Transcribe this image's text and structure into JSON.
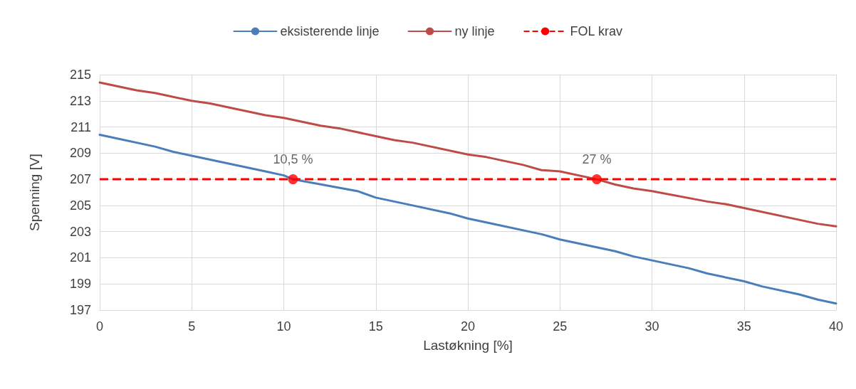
{
  "chart_data": {
    "type": "line",
    "xlabel": "Lastøkning [%]",
    "ylabel": "Spenning [V]",
    "xlim": [
      0,
      40
    ],
    "xticks": [
      0,
      5,
      10,
      15,
      20,
      25,
      30,
      35,
      40
    ],
    "ylim": [
      197,
      215
    ],
    "yticks": [
      197,
      199,
      201,
      203,
      205,
      207,
      209,
      211,
      213,
      215
    ],
    "grid": true,
    "legend": "top",
    "marker": "none",
    "line_style": "solid",
    "series": [
      {
        "name": "eksisterende linje",
        "color": "#4a7ebb",
        "x": [
          0,
          3,
          4,
          5,
          6,
          9,
          10,
          10.5,
          14,
          15,
          17,
          19,
          20,
          21,
          24,
          25,
          27,
          28,
          29,
          30,
          32,
          33,
          35,
          36,
          38,
          39,
          40
        ],
        "values": [
          210.4,
          209.5,
          209.1,
          208.8,
          208.5,
          207.6,
          207.3,
          207.0,
          206.1,
          205.6,
          205.0,
          204.4,
          204.0,
          203.7,
          202.8,
          202.4,
          201.8,
          201.5,
          201.1,
          200.8,
          200.2,
          199.8,
          199.2,
          198.8,
          198.2,
          197.8,
          197.5
        ]
      },
      {
        "name": "ny linje",
        "color": "#be4b48",
        "x": [
          0,
          2,
          3,
          5,
          6,
          9,
          10,
          12,
          13,
          15,
          16,
          17,
          20,
          21,
          23,
          24,
          25,
          27,
          28,
          29,
          30,
          33,
          34,
          35,
          38,
          39,
          40
        ],
        "values": [
          214.4,
          213.8,
          213.6,
          213.0,
          212.8,
          211.9,
          211.7,
          211.1,
          210.9,
          210.3,
          210.0,
          209.8,
          208.9,
          208.7,
          208.1,
          207.7,
          207.6,
          207.0,
          206.6,
          206.3,
          206.1,
          205.3,
          205.1,
          204.8,
          203.9,
          203.6,
          203.4
        ]
      }
    ],
    "ref_lines": [
      {
        "axis": "y",
        "value": 207,
        "label": "FOL krav",
        "color": "#ff0000",
        "line_style": "dashed"
      }
    ],
    "annotations": [
      {
        "text": "10,5 %",
        "x": 10.5,
        "y": 207
      },
      {
        "text": "27 %",
        "x": 27,
        "y": 207
      }
    ]
  }
}
